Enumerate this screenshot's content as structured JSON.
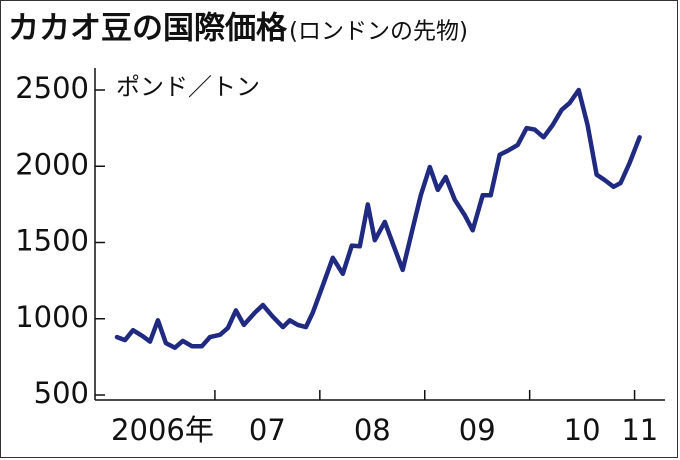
{
  "chart_data": {
    "type": "line",
    "title": "カカオ豆の国際価格",
    "subtitle": "(ロンドンの先物)",
    "y_label": "ポンド／トン",
    "x": [
      2006.067,
      2006.143,
      2006.219,
      2006.314,
      2006.381,
      2006.457,
      2006.533,
      2006.619,
      2006.695,
      2006.781,
      2006.876,
      2006.952,
      2007.048,
      2007.124,
      2007.2,
      2007.276,
      2007.381,
      2007.457,
      2007.543,
      2007.648,
      2007.714,
      2007.79,
      2007.867,
      2007.933,
      2008.029,
      2008.124,
      2008.219,
      2008.305,
      2008.381,
      2008.457,
      2008.524,
      2008.619,
      2008.695,
      2008.79,
      2008.886,
      2008.962,
      2009.048,
      2009.124,
      2009.2,
      2009.286,
      2009.381,
      2009.457,
      2009.552,
      2009.629,
      2009.714,
      2009.8,
      2009.886,
      2009.971,
      2010.048,
      2010.133,
      2010.219,
      2010.305,
      2010.381,
      2010.467,
      2010.552,
      2010.638,
      2010.714,
      2010.8,
      2010.867,
      2010.952,
      2011.048
    ],
    "series": [
      {
        "name": "カカオ豆",
        "color": "#1f2a80",
        "values": [
          880,
          860,
          925,
          885,
          850,
          990,
          840,
          810,
          855,
          820,
          820,
          880,
          895,
          940,
          1055,
          960,
          1040,
          1090,
          1020,
          945,
          990,
          960,
          945,
          1040,
          1220,
          1400,
          1295,
          1480,
          1475,
          1750,
          1515,
          1635,
          1495,
          1320,
          1595,
          1810,
          1995,
          1845,
          1930,
          1780,
          1680,
          1580,
          1810,
          1810,
          2075,
          2105,
          2140,
          2250,
          2240,
          2190,
          2270,
          2370,
          2415,
          2500,
          2270,
          1945,
          1910,
          1865,
          1890,
          2020,
          2190
        ]
      }
    ],
    "xlim": [
      2005.857,
      2011.29
    ],
    "xticks": [
      {
        "value": 2006.5,
        "label": "2006年"
      },
      {
        "value": 2007.5,
        "label": "07"
      },
      {
        "value": 2008.5,
        "label": "08"
      },
      {
        "value": 2009.5,
        "label": "09"
      },
      {
        "value": 2010.5,
        "label": "10"
      },
      {
        "value": 2011.05,
        "label": "11"
      }
    ],
    "xticks_minor": [
      2007,
      2008,
      2009,
      2010,
      2011
    ],
    "ylim": [
      500,
      2500
    ],
    "yticks": [
      500,
      1000,
      1500,
      2000,
      2500
    ]
  }
}
